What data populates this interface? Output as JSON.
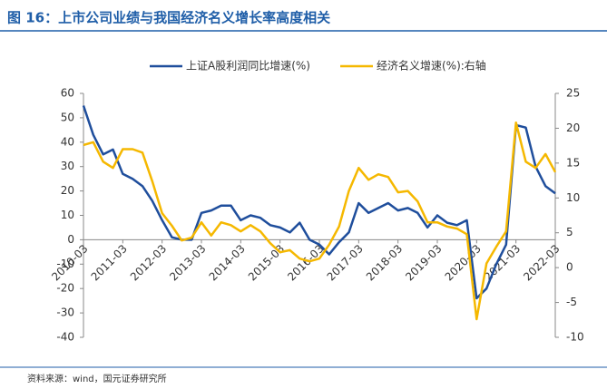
{
  "chart_data": {
    "type": "line",
    "title": "图 16：上市公司业绩与我国经济名义增长率高度相关",
    "source": "资料来源：wind，国元证券研究所",
    "categories": [
      "2010-03",
      null,
      null,
      null,
      "2011-03",
      null,
      null,
      null,
      "2012-03",
      null,
      null,
      null,
      "2013-03",
      null,
      null,
      null,
      "2014-03",
      null,
      null,
      null,
      "2015-03",
      null,
      null,
      null,
      "2016-03",
      null,
      null,
      null,
      "2017-03",
      null,
      null,
      null,
      "2018-03",
      null,
      null,
      null,
      "2019-03",
      null,
      null,
      null,
      "2020-03",
      null,
      null,
      null,
      "2021-03",
      null,
      null,
      null,
      "2022-03"
    ],
    "series": [
      {
        "name": "上证A股利润同比增速(%)",
        "color": "#1f4e9c",
        "axis": "y",
        "values": [
          55,
          43,
          35,
          37,
          27,
          25,
          22,
          16,
          8,
          1,
          0,
          0,
          11,
          12,
          14,
          14,
          8,
          10,
          9,
          6,
          5,
          3,
          7,
          0,
          -2,
          -6,
          -1,
          3,
          15,
          11,
          13,
          15,
          12,
          13,
          11,
          5,
          10,
          7,
          6,
          8,
          -24,
          -20,
          -10,
          -2,
          47,
          46,
          30,
          22,
          19
        ]
      },
      {
        "name": "经济名义增速(%):右轴",
        "color": "#f5b800",
        "axis": "y2",
        "values": [
          17.6,
          18,
          15.2,
          14.3,
          17,
          17,
          16.5,
          12.4,
          7.8,
          6,
          3.9,
          4.3,
          6.5,
          4.6,
          6.5,
          6.1,
          5.2,
          6.1,
          5.2,
          3.5,
          2.2,
          2.5,
          1.3,
          0.9,
          1.3,
          3.3,
          5.9,
          11,
          14.3,
          12.6,
          13.4,
          13,
          10.8,
          11,
          9.5,
          6.5,
          6.5,
          5.9,
          5.6,
          4.8,
          -7.4,
          0.6,
          3,
          5.2,
          20.8,
          15.2,
          14.3,
          16.3,
          13.7
        ]
      }
    ],
    "ylim": [
      -40,
      60
    ],
    "yticks": [
      -40,
      -30,
      -20,
      -10,
      0,
      10,
      20,
      30,
      40,
      50,
      60
    ],
    "y2lim": [
      -10,
      25
    ],
    "y2ticks": [
      -10,
      -5,
      0,
      5,
      10,
      15,
      20,
      25
    ],
    "legend": "top",
    "grid": false
  }
}
